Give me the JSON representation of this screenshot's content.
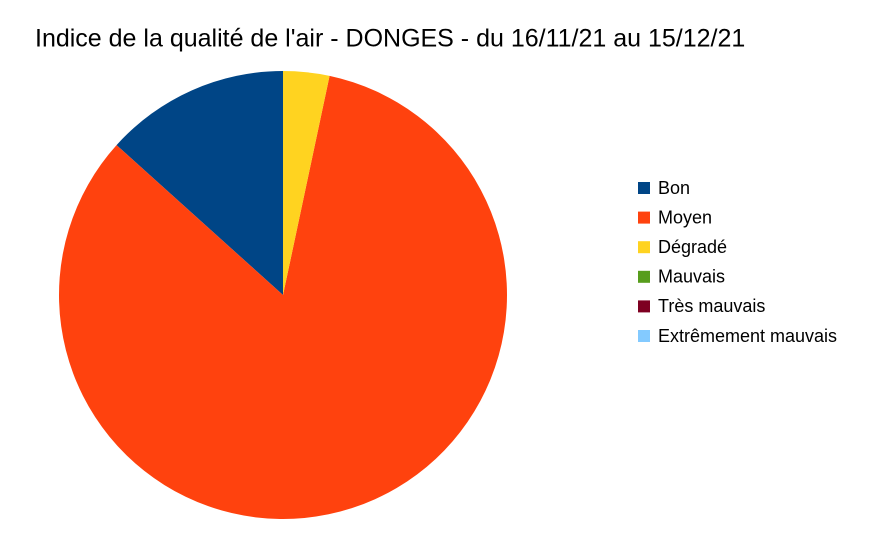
{
  "chart_data": {
    "type": "pie",
    "title": "Indice de la qualité de l'air - DONGES - du 16/11/21 au 15/12/21",
    "categories": [
      "Bon",
      "Moyen",
      "Dégradé",
      "Mauvais",
      "Très mauvais",
      "Extrêmement mauvais"
    ],
    "values": [
      4,
      25,
      1,
      0,
      0,
      0
    ],
    "colors": [
      "#004586",
      "#ff420e",
      "#ffd320",
      "#579d1c",
      "#7e0021",
      "#83caff"
    ],
    "legend": "right"
  }
}
